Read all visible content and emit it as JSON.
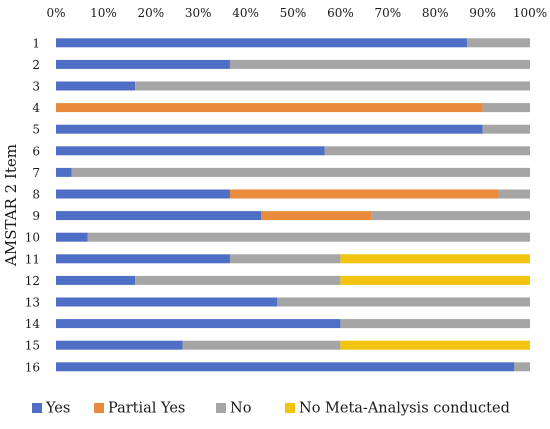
{
  "chart_data": {
    "type": "bar",
    "orientation": "horizontal",
    "stacked": true,
    "percent_stacked": true,
    "ylabel": "AMSTAR 2 Item",
    "categories": [
      "1",
      "2",
      "3",
      "4",
      "5",
      "6",
      "7",
      "8",
      "9",
      "10",
      "11",
      "12",
      "13",
      "14",
      "15",
      "16"
    ],
    "xticks": [
      "0%",
      "10%",
      "20%",
      "30%",
      "40%",
      "50%",
      "60%",
      "70%",
      "80%",
      "90%",
      "100%"
    ],
    "xlim": [
      0,
      100
    ],
    "x_axis_position": "top",
    "grid": false,
    "legend_position": "bottom",
    "series": [
      {
        "name": "Yes",
        "color": "#4f6fc6",
        "values": [
          86.7,
          36.7,
          16.7,
          0,
          90,
          56.7,
          3.3,
          36.7,
          43.3,
          6.7,
          36.7,
          16.7,
          46.7,
          60,
          26.7,
          96.7
        ]
      },
      {
        "name": "Partial Yes",
        "color": "#e98a3c",
        "values": [
          0,
          0,
          0,
          90,
          0,
          0,
          0,
          56.7,
          23.3,
          0,
          0,
          0,
          0,
          0,
          0,
          0
        ]
      },
      {
        "name": "No",
        "color": "#a5a5a5",
        "values": [
          13.3,
          63.3,
          83.3,
          10,
          10,
          43.3,
          96.7,
          6.6,
          33.4,
          93.3,
          23.3,
          43.3,
          53.3,
          40,
          33.3,
          3.3
        ]
      },
      {
        "name": "No Meta-Analysis conducted",
        "color": "#f2c40f",
        "values": [
          0,
          0,
          0,
          0,
          0,
          0,
          0,
          0,
          0,
          0,
          40,
          40,
          0,
          0,
          40,
          0
        ]
      }
    ]
  }
}
